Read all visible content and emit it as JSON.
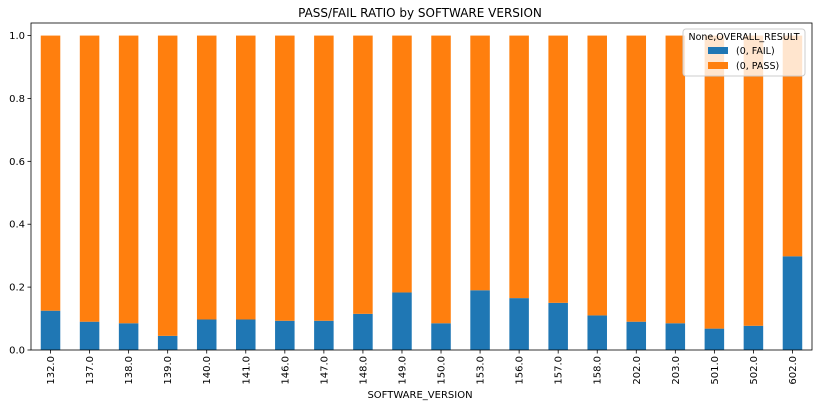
{
  "chart_data": {
    "type": "bar",
    "stacked": true,
    "title": "PASS/FAIL RATIO by SOFTWARE VERSION",
    "xlabel": "SOFTWARE_VERSION",
    "ylabel": "",
    "ylim": [
      0,
      1.04
    ],
    "yticks": [
      "0.0",
      "0.2",
      "0.4",
      "0.6",
      "0.8",
      "1.0"
    ],
    "ytick_values": [
      0,
      0.2,
      0.4,
      0.6,
      0.8,
      1.0
    ],
    "categories": [
      "132.0",
      "137.0",
      "138.0",
      "139.0",
      "140.0",
      "141.0",
      "146.0",
      "147.0",
      "148.0",
      "149.0",
      "150.0",
      "153.0",
      "156.0",
      "157.0",
      "158.0",
      "202.0",
      "203.0",
      "501.0",
      "502.0",
      "602.0"
    ],
    "series": [
      {
        "name": "(0, FAIL)",
        "color": "#1f77b4",
        "values": [
          0.125,
          0.09,
          0.085,
          0.045,
          0.097,
          0.097,
          0.093,
          0.093,
          0.115,
          0.183,
          0.085,
          0.19,
          0.165,
          0.15,
          0.11,
          0.09,
          0.085,
          0.068,
          0.077,
          0.298
        ]
      },
      {
        "name": "(0, PASS)",
        "color": "#ff7f0e",
        "values": [
          0.875,
          0.91,
          0.915,
          0.955,
          0.903,
          0.903,
          0.907,
          0.907,
          0.885,
          0.817,
          0.915,
          0.81,
          0.835,
          0.85,
          0.89,
          0.91,
          0.915,
          0.932,
          0.923,
          0.702
        ]
      }
    ],
    "legend": {
      "title": "None,OVERALL_RESULT",
      "placement": "top-right"
    },
    "grid": false
  }
}
